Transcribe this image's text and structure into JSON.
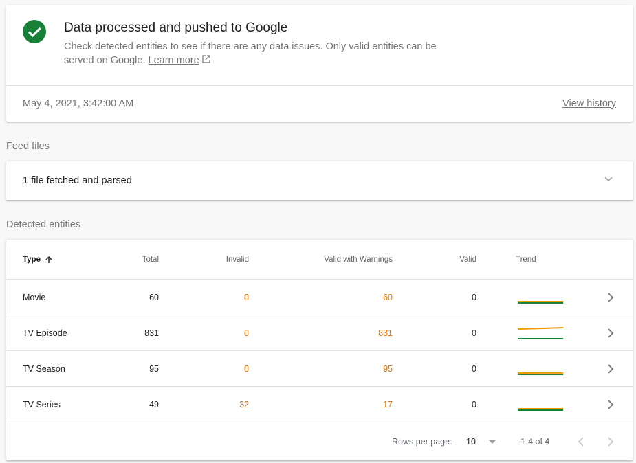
{
  "status": {
    "title": "Data processed and pushed to Google",
    "description": "Check detected entities to see if there are any data issues. Only valid entities can be served on Google.",
    "learn_more": "Learn more",
    "timestamp": "May 4, 2021, 3:42:00 AM",
    "view_history": "View history",
    "icon": "check-circle-icon",
    "color": "#188038"
  },
  "feed": {
    "section_label": "Feed files",
    "summary": "1 file fetched and parsed"
  },
  "entities": {
    "section_label": "Detected entities",
    "columns": [
      "Type",
      "Total",
      "Invalid",
      "Valid with Warnings",
      "Valid",
      "Trend"
    ],
    "sort": "ascending",
    "rows": [
      {
        "type": "Movie",
        "total": "60",
        "invalid": "0",
        "warnings": "60",
        "valid": "0",
        "trend": {
          "warnings": [
            60,
            60,
            60
          ],
          "valid": [
            0,
            0,
            0
          ]
        }
      },
      {
        "type": "TV Episode",
        "total": "831",
        "invalid": "0",
        "warnings": "831",
        "valid": "0",
        "trend": {
          "warnings": [
            820,
            825,
            831
          ],
          "valid": [
            0,
            0,
            0
          ]
        }
      },
      {
        "type": "TV Season",
        "total": "95",
        "invalid": "0",
        "warnings": "95",
        "valid": "0",
        "trend": {
          "warnings": [
            93,
            95,
            95
          ],
          "valid": [
            0,
            0,
            0
          ]
        }
      },
      {
        "type": "TV Series",
        "total": "49",
        "invalid": "32",
        "warnings": "17",
        "valid": "0",
        "trend": {
          "warnings": [
            17,
            17,
            17
          ],
          "valid": [
            0,
            0,
            0
          ]
        }
      }
    ],
    "rows_per_page_label": "Rows per page:",
    "rows_per_page": "10",
    "range": "1-4 of 4",
    "colors": {
      "warnings": "#f29900",
      "valid": "#188038"
    }
  }
}
